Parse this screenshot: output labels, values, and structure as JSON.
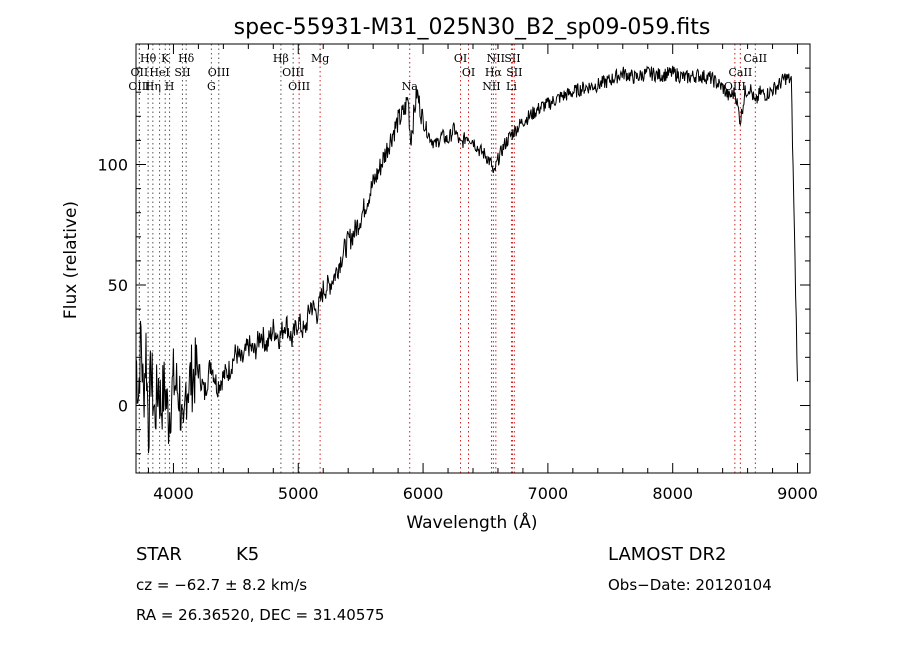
{
  "chart_data": {
    "type": "line",
    "title": "spec-55931-M31_025N30_B2_sp09-059.fits",
    "xlabel": "Wavelength (Å)",
    "ylabel": "Flux (relative)",
    "xlim": [
      3700,
      9100
    ],
    "ylim": [
      -28,
      150
    ],
    "xticks": [
      4000,
      5000,
      6000,
      7000,
      8000,
      9000
    ],
    "yticks": [
      0,
      50,
      100
    ],
    "grid": false,
    "series": [
      {
        "x": [
          3700,
          3720,
          3740,
          3760,
          3780,
          3800,
          3820,
          3850,
          3880,
          3900,
          3930,
          3960,
          4000,
          4050,
          4080,
          4100,
          4150,
          4200,
          4250,
          4300,
          4350,
          4400,
          4450,
          4500,
          4550,
          4600,
          4650,
          4700,
          4750,
          4800,
          4850,
          4900,
          4950,
          5000,
          5050,
          5100,
          5150,
          5200,
          5250,
          5300,
          5350,
          5400,
          5450,
          5500,
          5550,
          5600,
          5650,
          5700,
          5750,
          5800,
          5850,
          5880,
          5900,
          5950,
          6000,
          6050,
          6100,
          6150,
          6200,
          6250,
          6300,
          6350,
          6400,
          6450,
          6500,
          6550,
          6563,
          6600,
          6650,
          6700,
          6750,
          6800,
          6850,
          6900,
          6950,
          7000,
          7100,
          7200,
          7300,
          7400,
          7500,
          7600,
          7700,
          7800,
          7900,
          8000,
          8100,
          8200,
          8300,
          8400,
          8450,
          8500,
          8542,
          8580,
          8620,
          8662,
          8700,
          8750,
          8800,
          8850,
          8900,
          8950,
          9000
        ],
        "y": [
          20,
          5,
          30,
          2,
          25,
          -10,
          15,
          -5,
          10,
          0,
          8,
          -5,
          10,
          5,
          -20,
          8,
          12,
          15,
          5,
          18,
          8,
          12,
          15,
          22,
          18,
          25,
          22,
          30,
          25,
          32,
          28,
          35,
          27,
          35,
          30,
          42,
          38,
          48,
          50,
          55,
          62,
          68,
          72,
          78,
          85,
          92,
          98,
          105,
          112,
          118,
          122,
          128,
          110,
          130,
          118,
          112,
          108,
          112,
          110,
          115,
          108,
          112,
          110,
          106,
          104,
          100,
          95,
          102,
          108,
          112,
          115,
          118,
          120,
          122,
          124,
          125,
          128,
          130,
          132,
          133,
          135,
          138,
          136,
          138,
          137,
          138,
          136,
          137,
          136,
          132,
          128,
          130,
          118,
          130,
          132,
          125,
          130,
          129,
          131,
          133,
          136,
          135,
          10
        ]
      }
    ],
    "lines": [
      {
        "name": "Hθ",
        "x": 3797
      },
      {
        "name": "K",
        "x": 3934
      },
      {
        "name": "Hδ",
        "x": 4102
      },
      {
        "name": "Hβ",
        "x": 4861
      },
      {
        "name": "Mg",
        "x": 5175
      },
      {
        "name": "OI",
        "x": 6300
      },
      {
        "name": "NII",
        "x": 6583
      },
      {
        "name": "SII",
        "x": 6716
      },
      {
        "name": "CaII",
        "x": 8662
      },
      {
        "name": "OII",
        "x": 3727
      },
      {
        "name": "HeI",
        "x": 3889
      },
      {
        "name": "SII",
        "x": 4072
      },
      {
        "name": "OIII",
        "x": 4363
      },
      {
        "name": "OIII",
        "x": 4959
      },
      {
        "name": "OI",
        "x": 6364
      },
      {
        "name": "Hα",
        "x": 6563
      },
      {
        "name": "SII",
        "x": 6731
      },
      {
        "name": "CaII",
        "x": 8542
      },
      {
        "name": "OIII",
        "x": 3727
      },
      {
        "name": "Hη",
        "x": 3835
      },
      {
        "name": "H",
        "x": 3969
      },
      {
        "name": "G",
        "x": 4304
      },
      {
        "name": "OIII",
        "x": 5007
      },
      {
        "name": "Na",
        "x": 5893
      },
      {
        "name": "NII",
        "x": 6548
      },
      {
        "name": "Li",
        "x": 6708
      },
      {
        "name": "OIII",
        "x": 8498
      }
    ]
  },
  "footer": {
    "object_class": "STAR",
    "subclass": "K5",
    "survey": "LAMOST DR2",
    "cz": "cz = −62.7 ± 8.2 km/s",
    "obs_date": "Obs−Date: 20120104",
    "coords": "RA =  26.36520, DEC =  31.40575"
  }
}
